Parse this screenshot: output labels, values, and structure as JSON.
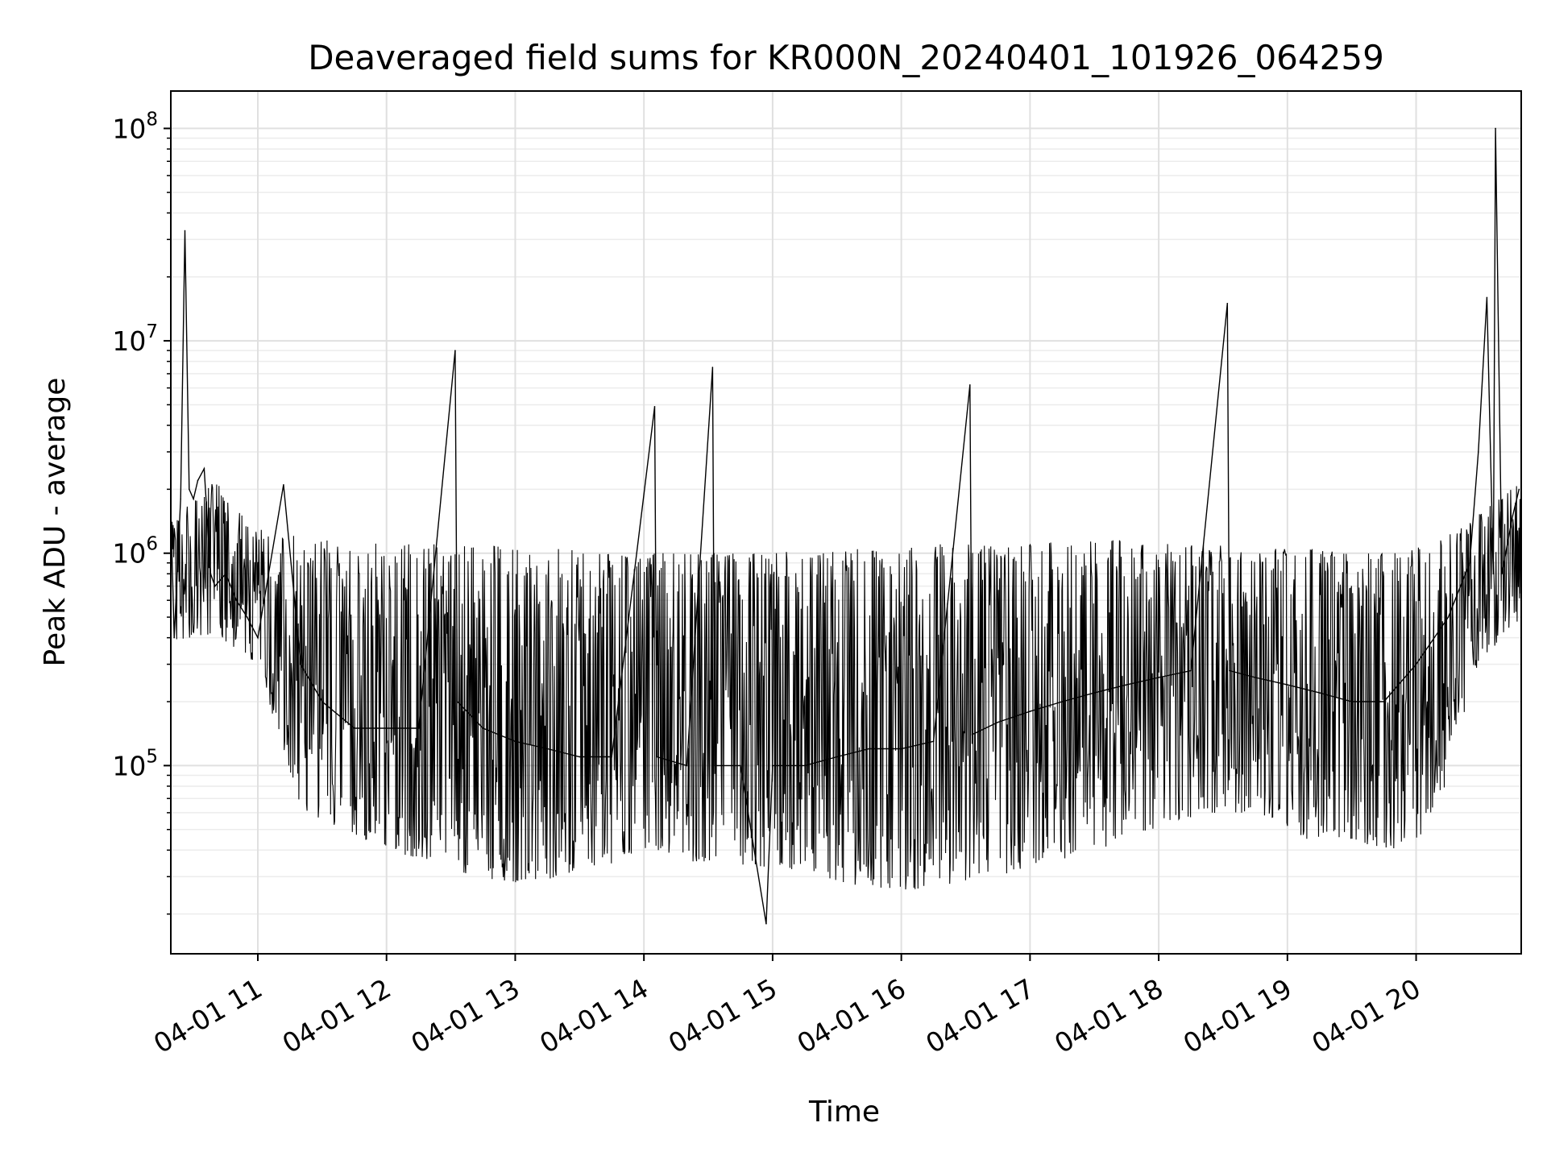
{
  "chart_data": {
    "type": "line",
    "title": "Deaveraged field sums for KR000N_20240401_101926_064259",
    "xlabel": "Time",
    "ylabel": "Peak ADU - average",
    "yscale": "log",
    "ylim": [
      13000,
      150000000
    ],
    "xlim": [
      "2024-04-01 10:19:26",
      "2024-04-01 20:49:00"
    ],
    "grid": true,
    "line_color": "#000000",
    "x_ticks": [
      "04-01 11",
      "04-01 12",
      "04-01 13",
      "04-01 14",
      "04-01 15",
      "04-01 16",
      "04-01 17",
      "04-01 18",
      "04-01 19",
      "04-01 20"
    ],
    "y_ticks": [
      {
        "base": "10",
        "exp": "5"
      },
      {
        "base": "10",
        "exp": "6"
      },
      {
        "base": "10",
        "exp": "7"
      },
      {
        "base": "10",
        "exp": "8"
      }
    ],
    "series": [
      {
        "x": [
          "2024-04-01 10:19:30",
          "2024-04-01 10:21:00",
          "2024-04-01 10:24:00",
          "2024-04-01 10:26:00",
          "2024-04-01 10:28:00",
          "2024-04-01 10:30:00",
          "2024-04-01 10:32:00",
          "2024-04-01 10:35:00",
          "2024-04-01 10:38:00",
          "2024-04-01 10:40:00",
          "2024-04-01 10:45:00",
          "2024-04-01 10:50:00",
          "2024-04-01 10:55:00",
          "2024-04-01 11:00:00",
          "2024-04-01 11:12:00",
          "2024-04-01 11:20:00",
          "2024-04-01 11:30:00",
          "2024-04-01 11:45:00",
          "2024-04-01 12:00:00",
          "2024-04-01 12:15:00",
          "2024-04-01 12:32:00",
          "2024-04-01 12:33:00",
          "2024-04-01 12:45:00",
          "2024-04-01 13:00:00",
          "2024-04-01 13:15:00",
          "2024-04-01 13:30:00",
          "2024-04-01 13:45:00",
          "2024-04-01 14:05:00",
          "2024-04-01 14:06:00",
          "2024-04-01 14:20:00",
          "2024-04-01 14:32:00",
          "2024-04-01 14:33:00",
          "2024-04-01 14:45:00",
          "2024-04-01 14:57:00",
          "2024-04-01 15:00:00",
          "2024-04-01 15:15:00",
          "2024-04-01 15:30:00",
          "2024-04-01 15:45:00",
          "2024-04-01 16:00:00",
          "2024-04-01 16:15:00",
          "2024-04-01 16:32:00",
          "2024-04-01 16:33:00",
          "2024-04-01 16:45:00",
          "2024-04-01 17:00:00",
          "2024-04-01 17:15:00",
          "2024-04-01 17:30:00",
          "2024-04-01 17:45:00",
          "2024-04-01 18:00:00",
          "2024-04-01 18:15:00",
          "2024-04-01 18:32:00",
          "2024-04-01 18:33:00",
          "2024-04-01 18:45:00",
          "2024-04-01 19:00:00",
          "2024-04-01 19:15:00",
          "2024-04-01 19:30:00",
          "2024-04-01 19:45:00",
          "2024-04-01 20:00:00",
          "2024-04-01 20:15:00",
          "2024-04-01 20:25:00",
          "2024-04-01 20:29:00",
          "2024-04-01 20:33:00",
          "2024-04-01 20:36:00",
          "2024-04-01 20:37:00",
          "2024-04-01 20:40:00",
          "2024-04-01 20:45:00",
          "2024-04-01 20:48:00"
        ],
        "values": [
          1500000,
          400000,
          1800000,
          33000000,
          2000000,
          1800000,
          2200000,
          2500000,
          800000,
          700000,
          800000,
          600000,
          500000,
          400000,
          2100000,
          300000,
          200000,
          150000,
          150000,
          150000,
          9000000,
          200000,
          150000,
          130000,
          120000,
          110000,
          110000,
          4900000,
          110000,
          100000,
          7500000,
          100000,
          100000,
          18000,
          100000,
          100000,
          110000,
          120000,
          120000,
          130000,
          6200000,
          140000,
          160000,
          180000,
          200000,
          220000,
          240000,
          260000,
          280000,
          15000000,
          280000,
          260000,
          240000,
          220000,
          200000,
          200000,
          300000,
          500000,
          900000,
          3000000,
          16000000,
          800000,
          100000000,
          800000,
          1500000,
          2000000
        ],
        "band_low": [
          380000,
          420000,
          300000,
          60000,
          50000,
          40000,
          35000,
          30000,
          28000,
          30000,
          34000,
          40000,
          35000,
          34000,
          33000,
          30000,
          26000,
          26000,
          28000,
          30000,
          35000,
          38000,
          45000,
          55000,
          60000,
          60000,
          45000,
          45000,
          40000,
          50000,
          300000,
          500000
        ],
        "band_high": [
          1400000,
          2200000,
          1300000,
          1200000,
          1150000,
          1100000,
          1100000,
          1100000,
          1050000,
          1050000,
          1000000,
          1000000,
          1000000,
          1000000,
          1050000,
          1050000,
          1050000,
          1100000,
          1100000,
          1100000,
          1150000,
          1150000,
          1150000,
          1100000,
          1100000,
          1050000,
          1050000,
          1000000,
          1000000,
          1100000,
          1500000,
          2200000
        ]
      }
    ]
  }
}
